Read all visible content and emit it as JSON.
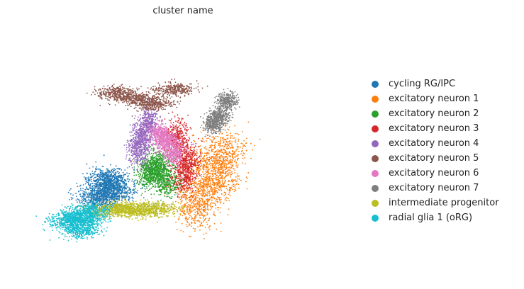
{
  "chart_data": {
    "type": "scatter",
    "title": "cluster name",
    "xlabel": "",
    "ylabel": "",
    "axes_visible": false,
    "grid": false,
    "legend_position": "right",
    "series": [
      {
        "name": "cycling RG/IPC",
        "color": "#1f77b4",
        "x": [
          0.3,
          0.31,
          0.29,
          0.33,
          0.27
        ],
        "y": [
          0.37,
          0.38,
          0.33,
          0.34,
          0.31
        ]
      },
      {
        "name": "excitatory neuron 1",
        "color": "#ff7f0e",
        "x": [
          0.6,
          0.63,
          0.57,
          0.62,
          0.55
        ],
        "y": [
          0.43,
          0.48,
          0.33,
          0.38,
          0.28
        ]
      },
      {
        "name": "excitatory neuron 2",
        "color": "#2ca02c",
        "x": [
          0.44,
          0.45,
          0.47,
          0.42
        ],
        "y": [
          0.41,
          0.43,
          0.37,
          0.4
        ]
      },
      {
        "name": "excitatory neuron 3",
        "color": "#d62728",
        "x": [
          0.5,
          0.53,
          0.52
        ],
        "y": [
          0.53,
          0.45,
          0.39
        ]
      },
      {
        "name": "excitatory neuron 4",
        "color": "#9467bd",
        "x": [
          0.4,
          0.42,
          0.39
        ],
        "y": [
          0.53,
          0.58,
          0.48
        ]
      },
      {
        "name": "excitatory neuron 5",
        "color": "#8c564b",
        "x": [
          0.33,
          0.38,
          0.43,
          0.49
        ],
        "y": [
          0.68,
          0.66,
          0.64,
          0.69
        ]
      },
      {
        "name": "excitatory neuron 6",
        "color": "#e377c2",
        "x": [
          0.47,
          0.49,
          0.45
        ],
        "y": [
          0.51,
          0.47,
          0.54
        ]
      },
      {
        "name": "excitatory neuron 7",
        "color": "#7f7f7f",
        "x": [
          0.62,
          0.64,
          0.6
        ],
        "y": [
          0.6,
          0.65,
          0.57
        ]
      },
      {
        "name": "intermediate progenitor",
        "color": "#bcbd22",
        "x": [
          0.35,
          0.4,
          0.44,
          0.32
        ],
        "y": [
          0.28,
          0.27,
          0.28,
          0.27
        ]
      },
      {
        "name": "radial glia 1 (oRG)",
        "color": "#17becf",
        "x": [
          0.21,
          0.24,
          0.26,
          0.19,
          0.23
        ],
        "y": [
          0.25,
          0.24,
          0.27,
          0.23,
          0.2
        ]
      }
    ]
  },
  "legend": {
    "items": [
      {
        "label": "cycling RG/IPC",
        "color": "#1f77b4"
      },
      {
        "label": "excitatory neuron 1",
        "color": "#ff7f0e"
      },
      {
        "label": "excitatory neuron 2",
        "color": "#2ca02c"
      },
      {
        "label": "excitatory neuron 3",
        "color": "#d62728"
      },
      {
        "label": "excitatory neuron 4",
        "color": "#9467bd"
      },
      {
        "label": "excitatory neuron 5",
        "color": "#8c564b"
      },
      {
        "label": "excitatory neuron 6",
        "color": "#e377c2"
      },
      {
        "label": "excitatory neuron 7",
        "color": "#7f7f7f"
      },
      {
        "label": "intermediate progenitor",
        "color": "#bcbd22"
      },
      {
        "label": "radial glia 1 (oRG)",
        "color": "#17becf"
      }
    ]
  }
}
